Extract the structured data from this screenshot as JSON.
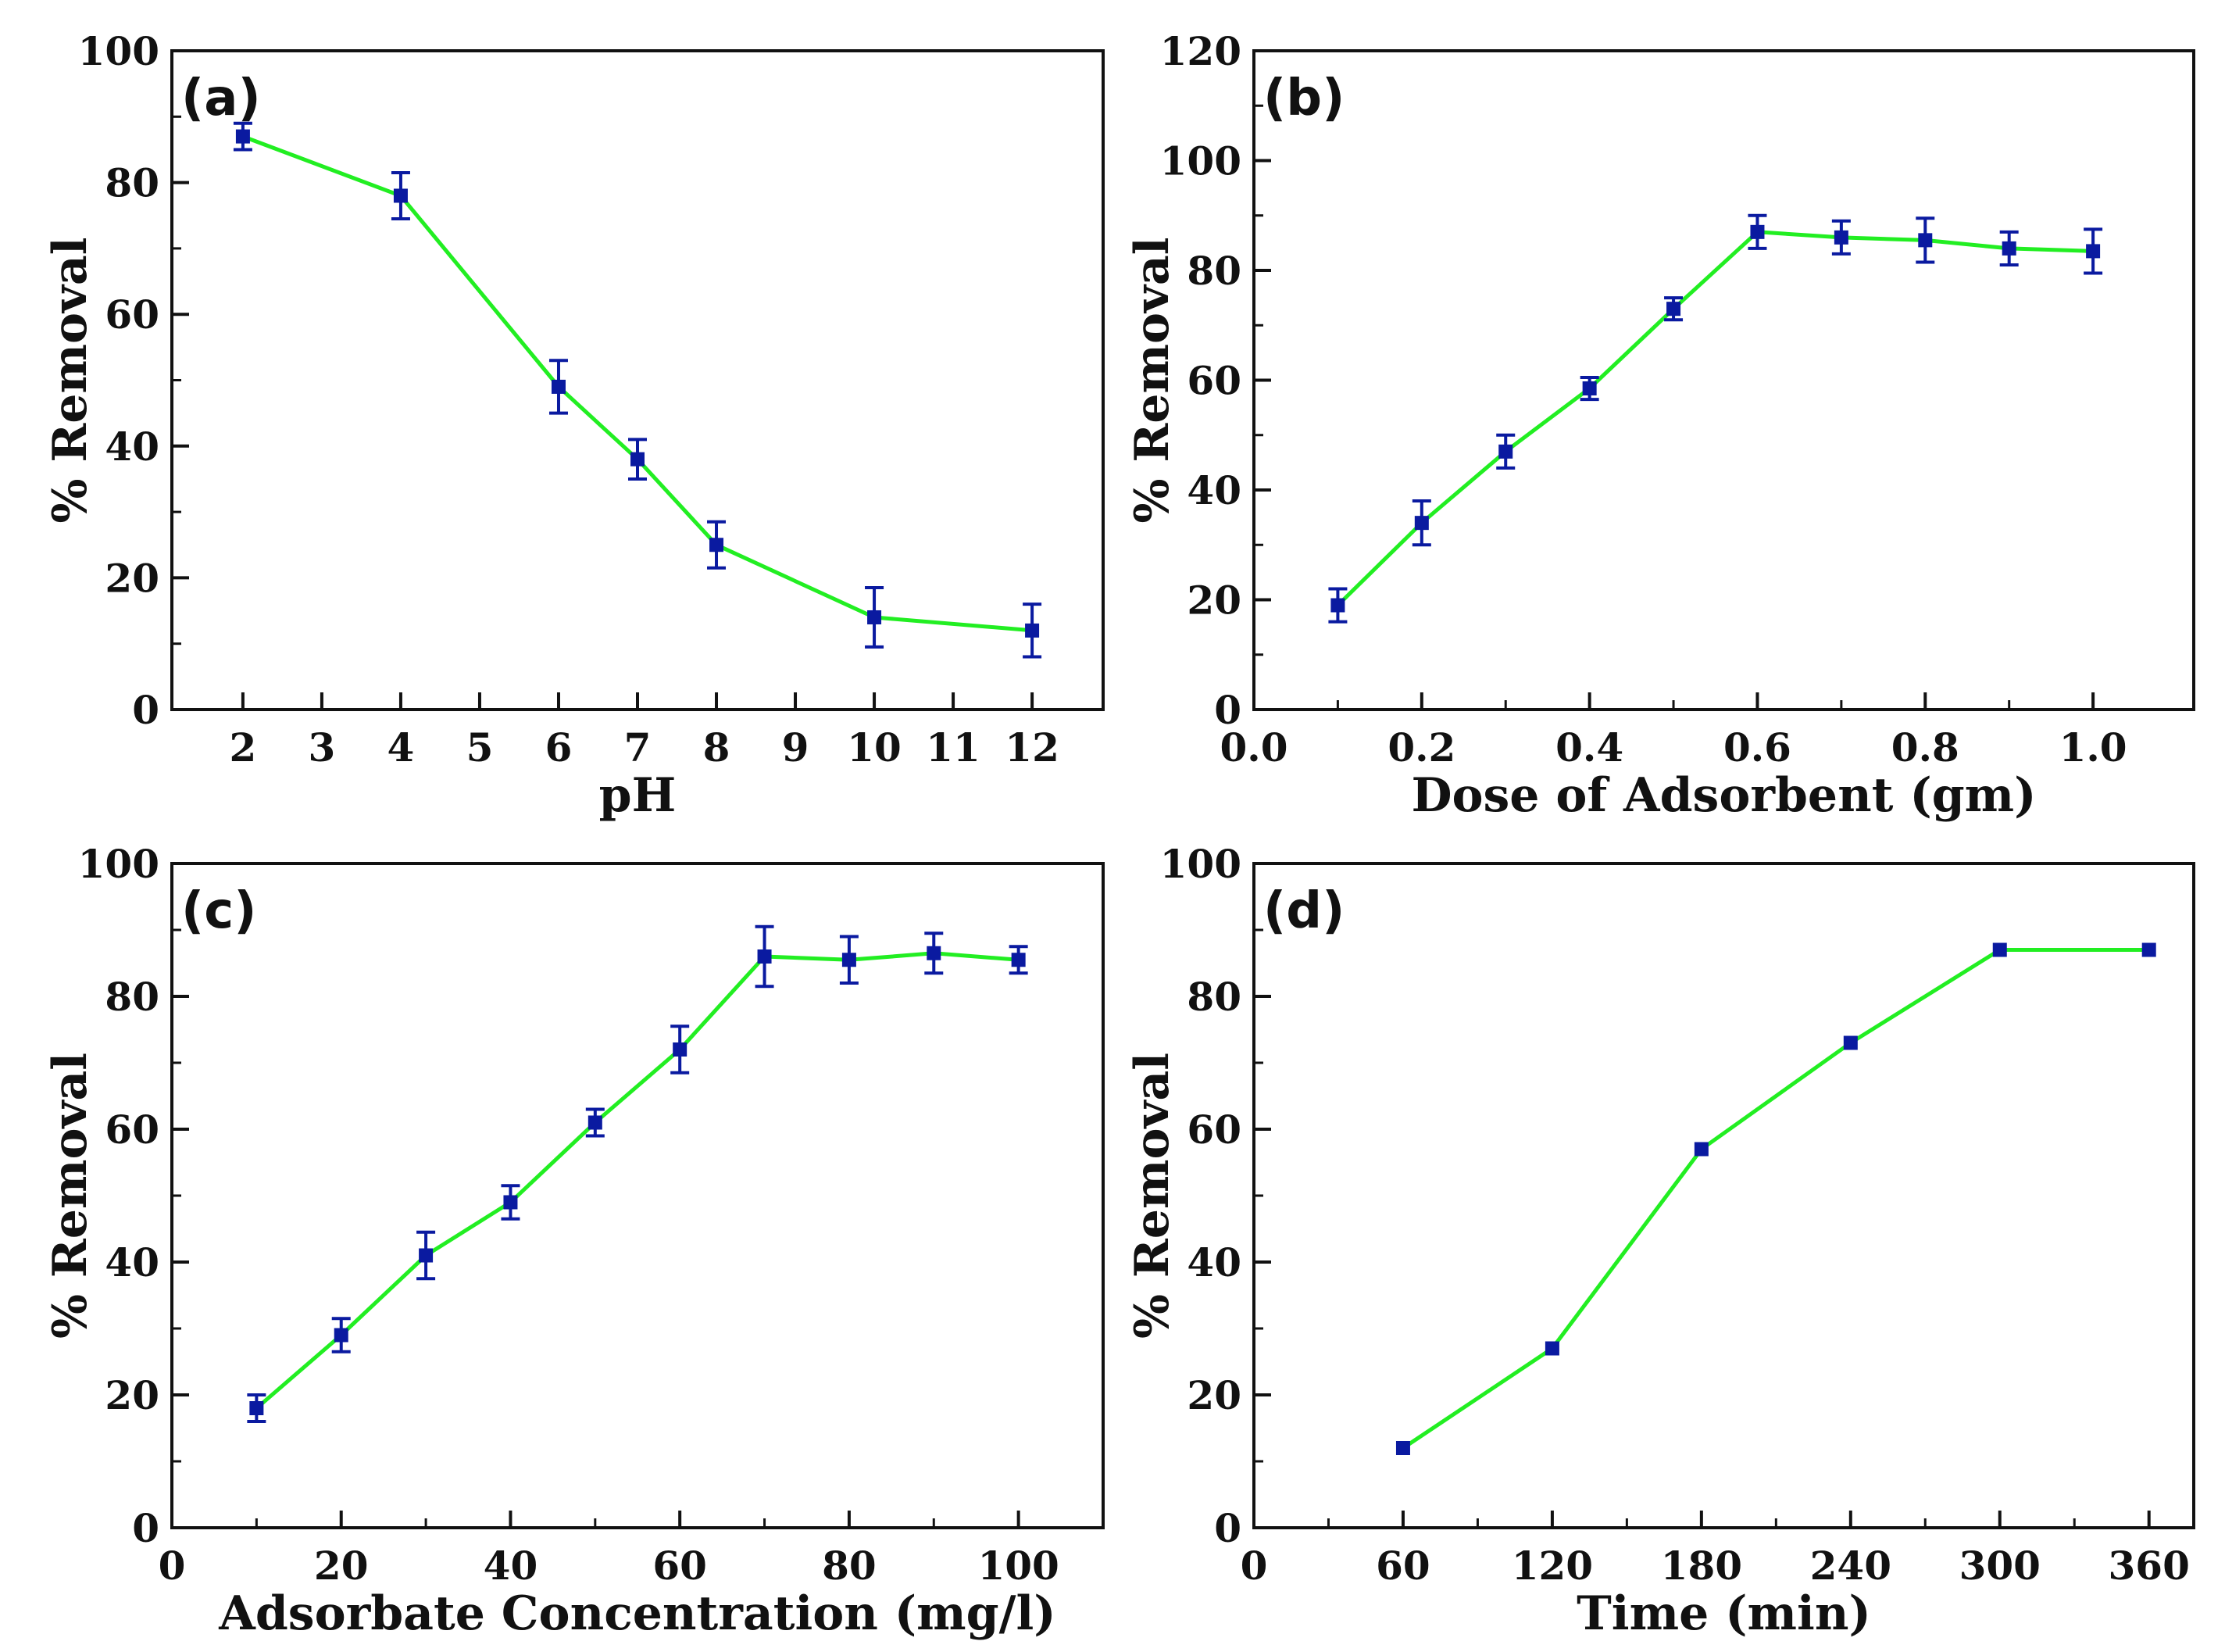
{
  "colors": {
    "line": "#22ee22",
    "marker": "#0a1aa0",
    "axis": "#111111"
  },
  "chart_data": [
    {
      "panel": "(a)",
      "type": "line",
      "xlabel": "pH",
      "ylabel": "% Removal",
      "xlim": [
        1.1,
        12.9
      ],
      "ylim": [
        0,
        100
      ],
      "xticks": [
        2,
        3,
        4,
        5,
        6,
        7,
        8,
        9,
        10,
        11,
        12
      ],
      "xtick_labels": [
        "2",
        "3",
        "4",
        "5",
        "6",
        "7",
        "8",
        "9",
        "10",
        "11",
        "12"
      ],
      "yticks": [
        0,
        20,
        40,
        60,
        80,
        100
      ],
      "ytick_labels": [
        "0",
        "20",
        "40",
        "60",
        "80",
        "100"
      ],
      "x": [
        2,
        4,
        6,
        7,
        8,
        10,
        12
      ],
      "y": [
        87,
        78,
        49,
        38,
        25,
        14,
        12
      ],
      "err": [
        2,
        3.5,
        4,
        3,
        3.5,
        4.5,
        4
      ]
    },
    {
      "panel": "(b)",
      "type": "line",
      "xlabel": "Dose of Adsorbent (gm)",
      "ylabel": "% Removal",
      "xlim": [
        0,
        1.12
      ],
      "ylim": [
        0,
        120
      ],
      "xticks": [
        0,
        0.2,
        0.4,
        0.6,
        0.8,
        1.0
      ],
      "xtick_labels": [
        "0.0",
        "0.2",
        "0.4",
        "0.6",
        "0.8",
        "1.0"
      ],
      "yticks": [
        0,
        20,
        40,
        60,
        80,
        100,
        120
      ],
      "ytick_labels": [
        "0",
        "20",
        "40",
        "60",
        "80",
        "100",
        "120"
      ],
      "x": [
        0.1,
        0.2,
        0.3,
        0.4,
        0.5,
        0.6,
        0.7,
        0.8,
        0.9,
        1.0
      ],
      "y": [
        19,
        34,
        47,
        58.5,
        73,
        87,
        86,
        85.5,
        84,
        83.5
      ],
      "err": [
        3,
        4,
        3,
        2,
        2,
        3,
        3,
        4,
        3,
        4
      ]
    },
    {
      "panel": "(c)",
      "type": "line",
      "xlabel": "Adsorbate Concentration (mg/l)",
      "ylabel": "% Removal",
      "xlim": [
        0,
        110
      ],
      "ylim": [
        0,
        100
      ],
      "xticks": [
        0,
        20,
        40,
        60,
        80,
        100
      ],
      "xtick_labels": [
        "0",
        "20",
        "40",
        "60",
        "80",
        "100"
      ],
      "yticks": [
        0,
        20,
        40,
        60,
        80,
        100
      ],
      "ytick_labels": [
        "0",
        "20",
        "40",
        "60",
        "80",
        "100"
      ],
      "x": [
        10,
        20,
        30,
        40,
        50,
        60,
        70,
        80,
        90,
        100
      ],
      "y": [
        18,
        29,
        41,
        49,
        61,
        72,
        86,
        85.5,
        86.5,
        85.5
      ],
      "err": [
        2,
        2.5,
        3.5,
        2.5,
        2,
        3.5,
        4.5,
        3.5,
        3,
        2
      ]
    },
    {
      "panel": "(d)",
      "type": "line",
      "xlabel": "Time (min)",
      "ylabel": "% Removal",
      "xlim": [
        0,
        378
      ],
      "ylim": [
        0,
        100
      ],
      "xticks": [
        0,
        60,
        120,
        180,
        240,
        300,
        360
      ],
      "xtick_labels": [
        "0",
        "60",
        "120",
        "180",
        "240",
        "300",
        "360"
      ],
      "yticks": [
        0,
        20,
        40,
        60,
        80,
        100
      ],
      "ytick_labels": [
        "0",
        "20",
        "40",
        "60",
        "80",
        "100"
      ],
      "x": [
        60,
        120,
        180,
        240,
        300,
        360
      ],
      "y": [
        12,
        27,
        57,
        73,
        87,
        87
      ],
      "err": [
        0,
        0,
        0,
        0,
        0,
        0
      ]
    }
  ]
}
